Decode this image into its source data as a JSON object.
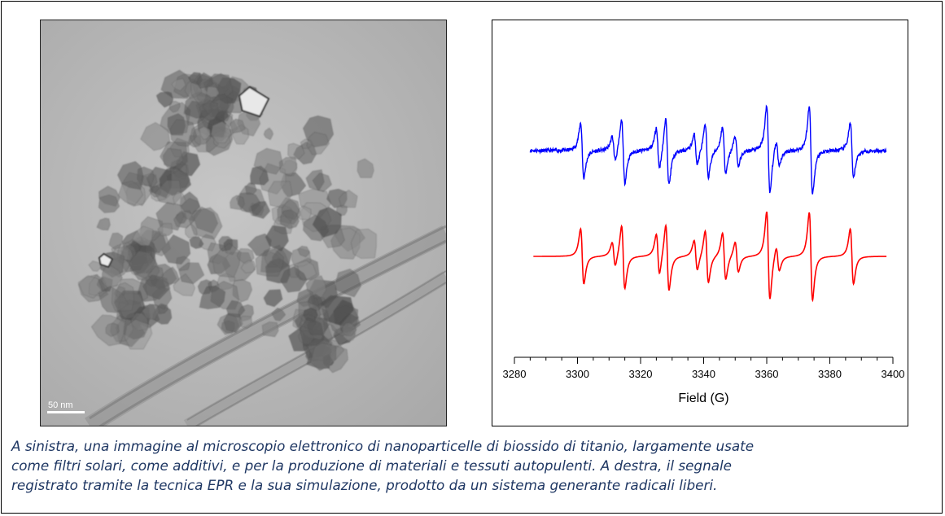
{
  "figure": {
    "scale_bar_label": "50 nm",
    "caption_lines": [
      "A sinistra, una  immagine al microscopio elettronico di nanoparticelle di biossido di titanio, largamente usate",
      "come filtri solari, come additivi, e per la produzione di materiali e tessuti autopulenti. A destra, il segnale",
      "registrato tramite la tecnica EPR e la sua simulazione, prodotto da un sistema generante radicali liberi."
    ]
  },
  "chart_data": {
    "type": "line",
    "xlabel": "Field (G)",
    "ylabel": "",
    "xlim": [
      3280,
      3400
    ],
    "x_ticks": [
      3280,
      3300,
      3320,
      3340,
      3360,
      3380,
      3400
    ],
    "grid": false,
    "legend": "none",
    "series": [
      {
        "color": "#0000ff",
        "role": "experimental",
        "lines": [
          {
            "x": 3301.5,
            "amp": 1.0
          },
          {
            "x": 3311.5,
            "amp": 0.45
          },
          {
            "x": 3314.5,
            "amp": 1.15
          },
          {
            "x": 3325.5,
            "amp": 0.75
          },
          {
            "x": 3328.5,
            "amp": 1.2
          },
          {
            "x": 3337.5,
            "amp": 0.55
          },
          {
            "x": 3341.0,
            "amp": 0.95
          },
          {
            "x": 3346.5,
            "amp": 0.85
          },
          {
            "x": 3350.5,
            "amp": 0.55
          },
          {
            "x": 3360.5,
            "amp": 1.6
          },
          {
            "x": 3363.5,
            "amp": 0.45
          },
          {
            "x": 3374.0,
            "amp": 1.6
          },
          {
            "x": 3387.0,
            "amp": 1.0
          }
        ]
      },
      {
        "color": "#ff0000",
        "role": "simulation",
        "lines": [
          {
            "x": 3301.5,
            "amp": 1.0
          },
          {
            "x": 3311.5,
            "amp": 0.45
          },
          {
            "x": 3314.5,
            "amp": 1.15
          },
          {
            "x": 3325.5,
            "amp": 0.75
          },
          {
            "x": 3328.5,
            "amp": 1.2
          },
          {
            "x": 3337.5,
            "amp": 0.55
          },
          {
            "x": 3341.0,
            "amp": 0.95
          },
          {
            "x": 3346.5,
            "amp": 0.85
          },
          {
            "x": 3350.5,
            "amp": 0.55
          },
          {
            "x": 3360.5,
            "amp": 1.6
          },
          {
            "x": 3363.5,
            "amp": 0.45
          },
          {
            "x": 3374.0,
            "amp": 1.6
          },
          {
            "x": 3387.0,
            "amp": 1.0
          }
        ]
      }
    ]
  }
}
